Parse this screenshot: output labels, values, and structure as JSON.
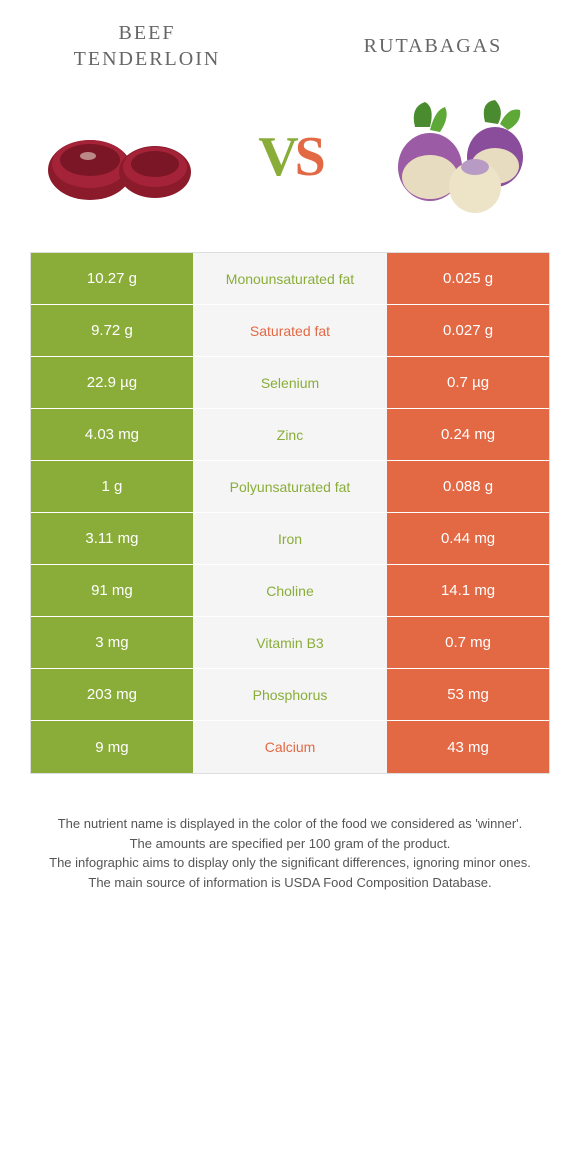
{
  "colors": {
    "green": "#8aad3a",
    "orange": "#e36844",
    "bg": "#ffffff",
    "mid_bg": "#f5f5f5",
    "text": "#555555"
  },
  "title_left": "BEEF\nTENDERLOIN",
  "title_right": "RUTABAGAS",
  "vs": {
    "v": "V",
    "s": "S"
  },
  "rows": [
    {
      "left": "10.27 g",
      "mid": "Monounsaturated fat",
      "right": "0.025 g",
      "winner": "left"
    },
    {
      "left": "9.72 g",
      "mid": "Saturated fat",
      "right": "0.027 g",
      "winner": "right"
    },
    {
      "left": "22.9 µg",
      "mid": "Selenium",
      "right": "0.7 µg",
      "winner": "left"
    },
    {
      "left": "4.03 mg",
      "mid": "Zinc",
      "right": "0.24 mg",
      "winner": "left"
    },
    {
      "left": "1 g",
      "mid": "Polyunsaturated fat",
      "right": "0.088 g",
      "winner": "left"
    },
    {
      "left": "3.11 mg",
      "mid": "Iron",
      "right": "0.44 mg",
      "winner": "left"
    },
    {
      "left": "91 mg",
      "mid": "Choline",
      "right": "14.1 mg",
      "winner": "left"
    },
    {
      "left": "3 mg",
      "mid": "Vitamin B3",
      "right": "0.7 mg",
      "winner": "left"
    },
    {
      "left": "203 mg",
      "mid": "Phosphorus",
      "right": "53 mg",
      "winner": "left"
    },
    {
      "left": "9 mg",
      "mid": "Calcium",
      "right": "43 mg",
      "winner": "right"
    }
  ],
  "footer": {
    "l1": "The nutrient name is displayed in the color of the food we considered as 'winner'.",
    "l2": "The amounts are specified per 100 gram of the product.",
    "l3": "The infographic aims to display only the significant differences, ignoring minor ones.",
    "l4": "The main source of information is USDA Food Composition Database."
  }
}
